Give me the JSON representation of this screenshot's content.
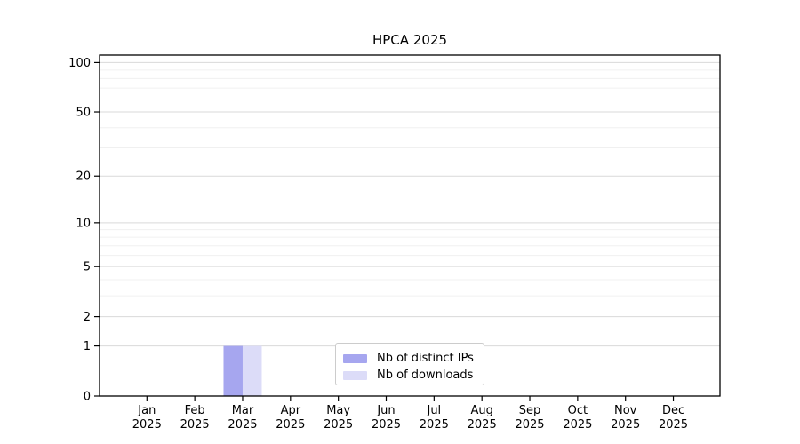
{
  "chart_data": {
    "type": "bar",
    "title": "HPCA 2025",
    "x": [
      {
        "month": "Jan",
        "year": "2025"
      },
      {
        "month": "Feb",
        "year": "2025"
      },
      {
        "month": "Mar",
        "year": "2025"
      },
      {
        "month": "Apr",
        "year": "2025"
      },
      {
        "month": "May",
        "year": "2025"
      },
      {
        "month": "Jun",
        "year": "2025"
      },
      {
        "month": "Jul",
        "year": "2025"
      },
      {
        "month": "Aug",
        "year": "2025"
      },
      {
        "month": "Sep",
        "year": "2025"
      },
      {
        "month": "Oct",
        "year": "2025"
      },
      {
        "month": "Nov",
        "year": "2025"
      },
      {
        "month": "Dec",
        "year": "2025"
      }
    ],
    "series": [
      {
        "name": "Nb of distinct IPs",
        "color": "#a6a6ef",
        "values": [
          0,
          0,
          1,
          0,
          0,
          0,
          0,
          0,
          0,
          0,
          0,
          0
        ]
      },
      {
        "name": "Nb of downloads",
        "color": "#dcdcf8",
        "values": [
          0,
          0,
          1,
          0,
          0,
          0,
          0,
          0,
          0,
          0,
          0,
          0
        ]
      }
    ],
    "yscale": "log10(1+v)",
    "ylim": [
      0,
      111
    ],
    "y_ticks": [
      0,
      1,
      2,
      5,
      10,
      20,
      50,
      100
    ],
    "y_minor_ticks": [
      3,
      4,
      6,
      7,
      8,
      9,
      30,
      40,
      60,
      70,
      80,
      90
    ],
    "xlabel": "",
    "ylabel": "",
    "grid": "horizontal",
    "legend_position": "bottom-center-inside",
    "colors": {
      "spine": "#000000",
      "grid_major": "#d9d9d9",
      "grid_minor": "#f0f0f0",
      "background": "#ffffff",
      "legend_border": "#cccccc"
    }
  }
}
